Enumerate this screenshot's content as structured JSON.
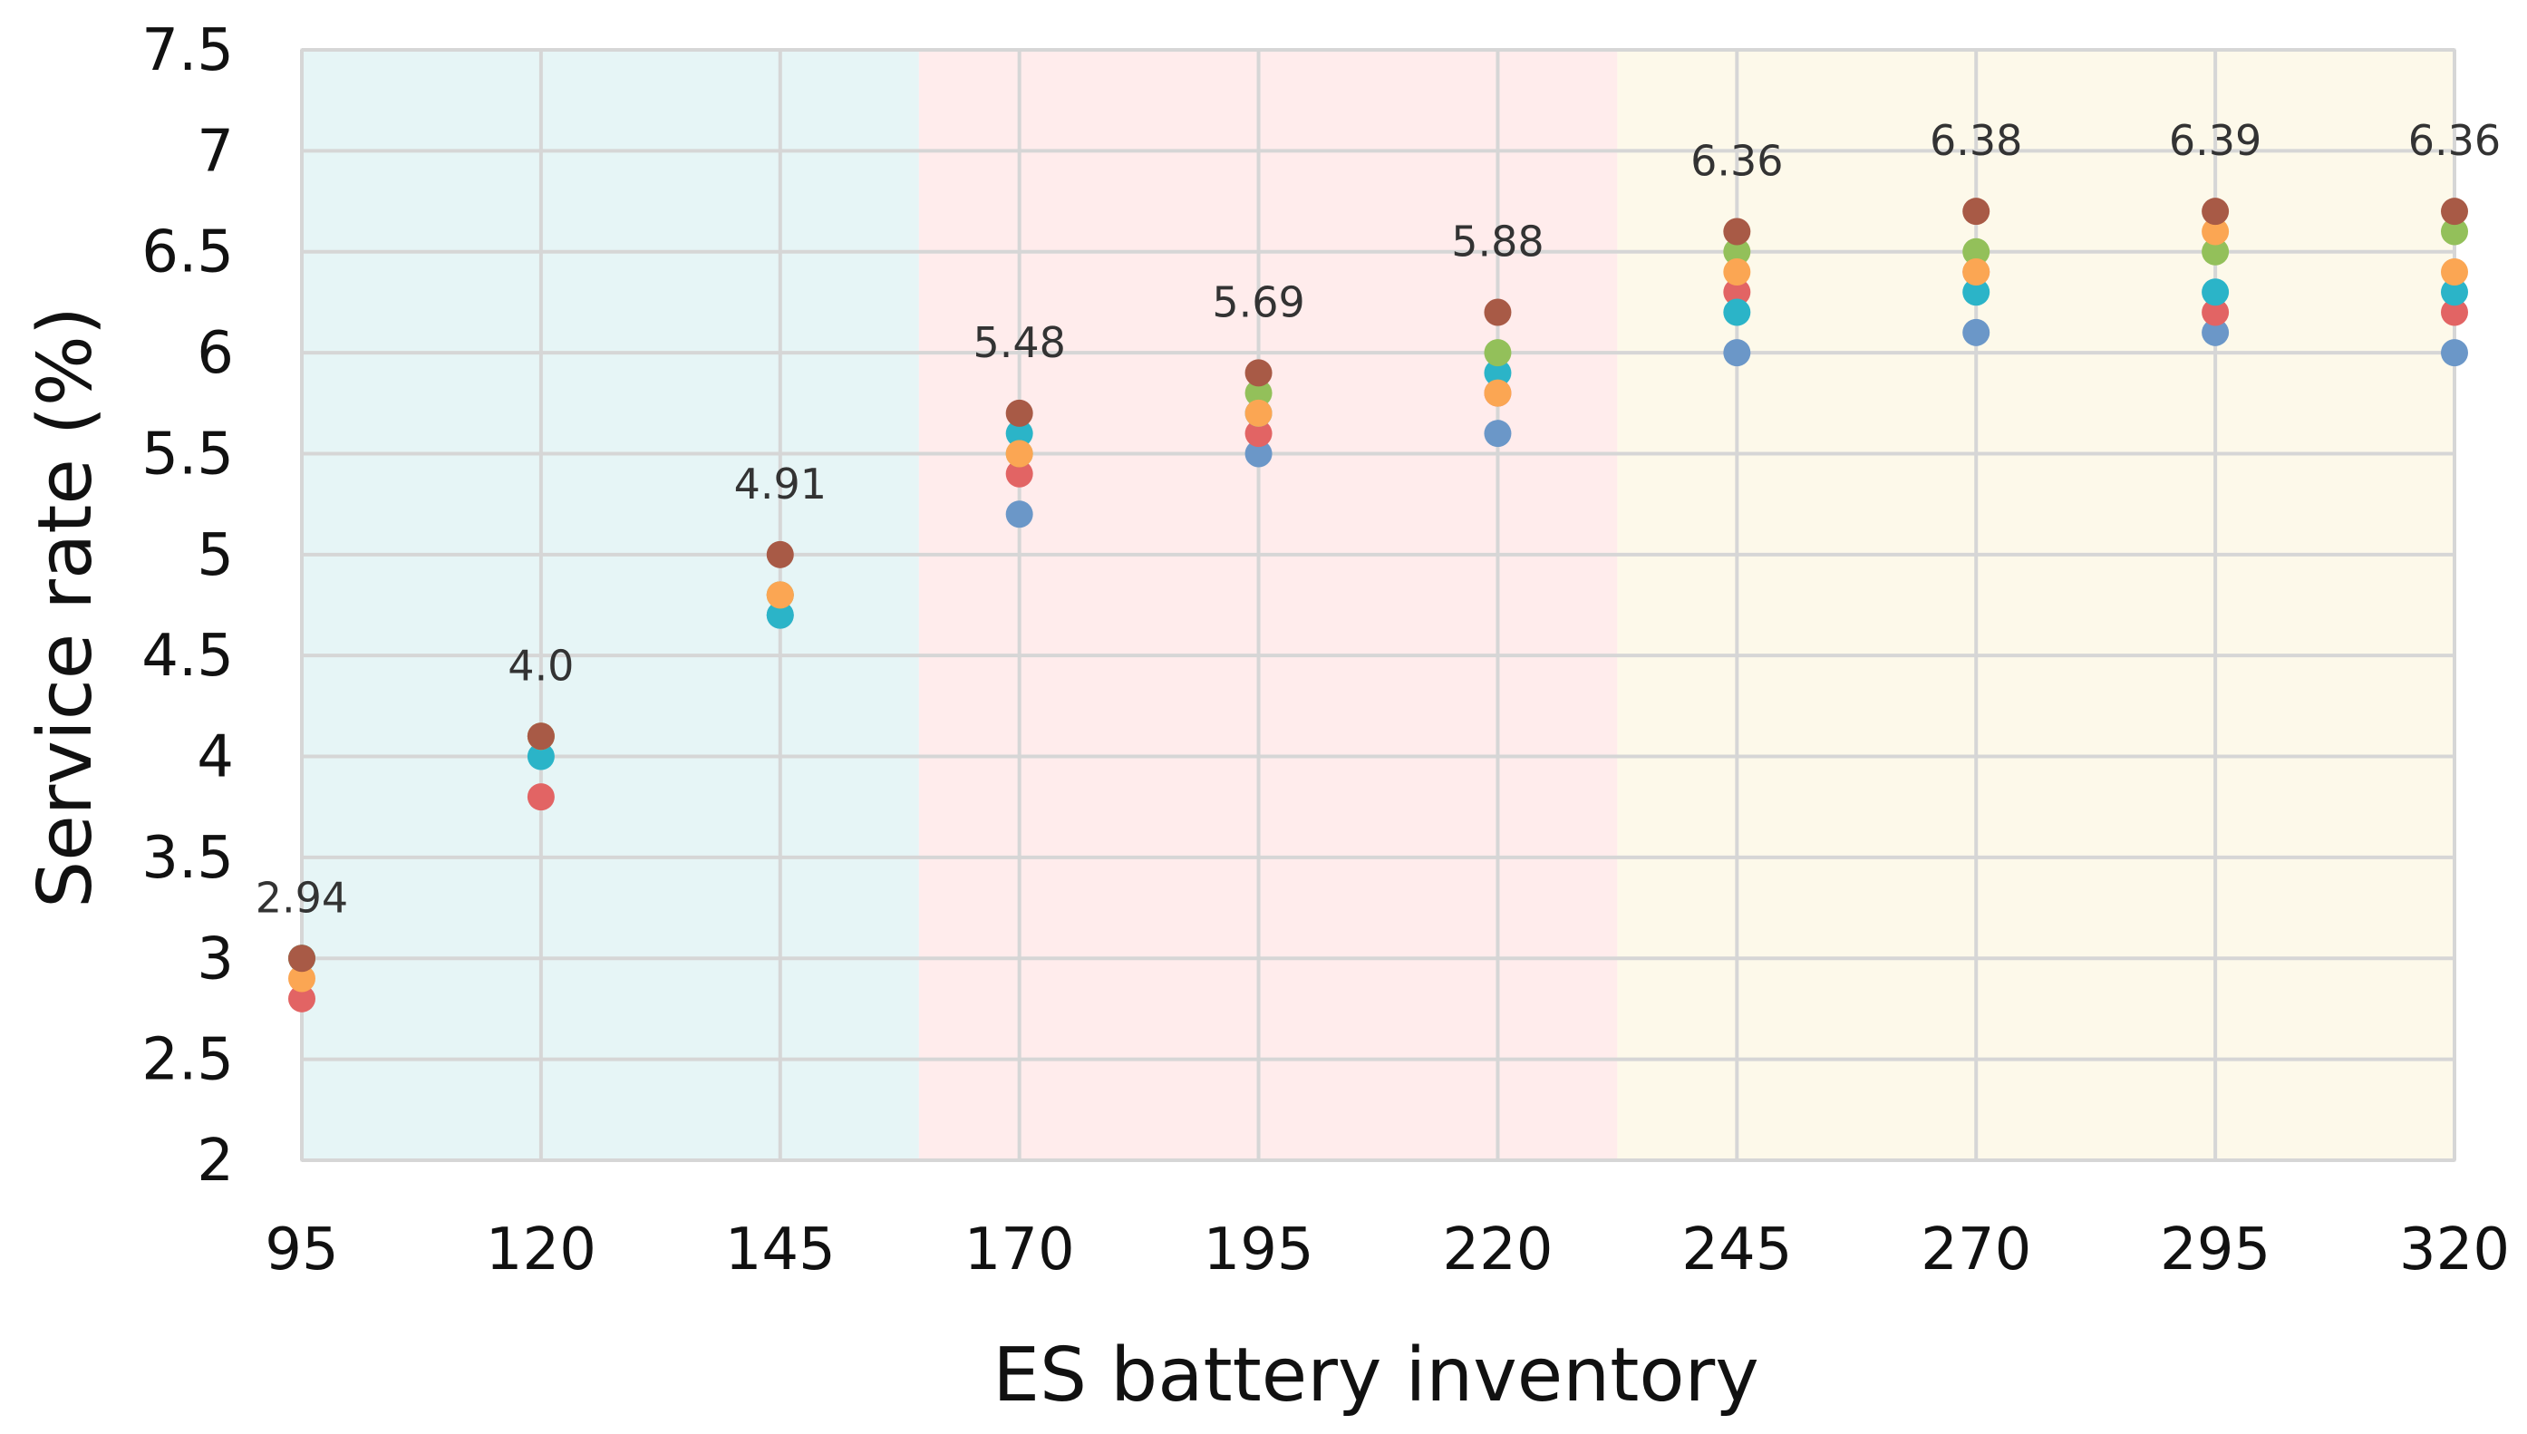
{
  "chart_data": {
    "type": "scatter",
    "title": "",
    "xlabel": "ES battery inventory",
    "ylabel": "Service rate (%)",
    "categories": [
      "95",
      "120",
      "145",
      "170",
      "195",
      "220",
      "245",
      "270",
      "295",
      "320"
    ],
    "x": [
      95,
      120,
      145,
      170,
      195,
      220,
      245,
      270,
      295,
      320
    ],
    "ylim": [
      2,
      7.5
    ],
    "yticks": [
      "2",
      "2.5",
      "3",
      "3.5",
      "4",
      "4.5",
      "5",
      "5.5",
      "6",
      "6.5",
      "7",
      "7.5"
    ],
    "grid": true,
    "regions": [
      {
        "x_start": 95,
        "x_end": 159.5,
        "color": "#e6f5f6"
      },
      {
        "x_start": 159.5,
        "x_end": 232.5,
        "color": "#ffecec"
      },
      {
        "x_start": 232.5,
        "x_end": 320,
        "color": "#fdf9ea"
      }
    ],
    "series": [
      {
        "name": "series-1",
        "color": "#6b97c8",
        "values": [
          3.0,
          4.1,
          4.7,
          5.2,
          5.5,
          5.6,
          6.0,
          6.1,
          6.1,
          6.0
        ]
      },
      {
        "name": "series-2",
        "color": "#e26464",
        "values": [
          2.8,
          3.8,
          4.8,
          5.4,
          5.6,
          5.8,
          6.3,
          6.4,
          6.2,
          6.2
        ]
      },
      {
        "name": "series-3",
        "color": "#2bb4c8",
        "values": [
          3.0,
          4.0,
          4.7,
          5.6,
          5.7,
          5.9,
          6.2,
          6.3,
          6.3,
          6.3
        ]
      },
      {
        "name": "series-4",
        "color": "#93c05a",
        "values": [
          3.0,
          4.1,
          4.8,
          5.5,
          5.8,
          6.0,
          6.5,
          6.5,
          6.5,
          6.6
        ]
      },
      {
        "name": "series-5",
        "color": "#fba653",
        "values": [
          2.9,
          4.1,
          4.8,
          5.5,
          5.7,
          5.8,
          6.4,
          6.4,
          6.6,
          6.4
        ]
      },
      {
        "name": "series-6",
        "color": "#a85a46",
        "values": [
          3.0,
          4.1,
          5.0,
          5.7,
          5.9,
          6.2,
          6.6,
          6.7,
          6.7,
          6.7
        ]
      }
    ],
    "data_labels": [
      "2.94",
      "4.0",
      "4.91",
      "5.48",
      "5.69",
      "5.88",
      "6.36",
      "6.38",
      "6.39",
      "6.36"
    ],
    "data_label_positions": [
      3.3,
      4.45,
      5.35,
      6.05,
      6.25,
      6.55,
      6.95,
      7.05,
      7.05,
      7.05
    ]
  }
}
